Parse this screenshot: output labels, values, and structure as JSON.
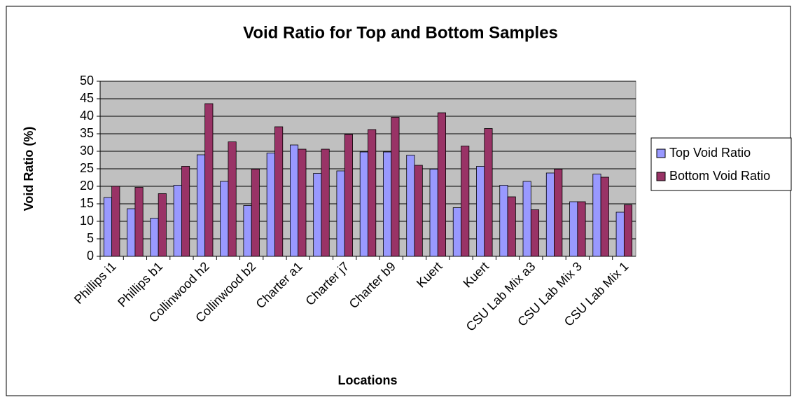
{
  "chart_data": {
    "type": "bar",
    "title": "Void Ratio for Top and Bottom Samples",
    "x_label": "Locations",
    "y_label": "Void Ratio (%)",
    "categories": [
      "Phillips i1",
      null,
      "Phillips b1",
      null,
      "Collinwood h2",
      null,
      "Collinwood b2",
      null,
      "Charter a1",
      null,
      "Charter j7",
      null,
      "Charter b9",
      null,
      "Kuert",
      null,
      "Kuert",
      null,
      "CSU Lab Mix a3",
      null,
      "CSU Lab Mix 3",
      null,
      "CSU Lab Mix 1"
    ],
    "series": [
      {
        "name": "Top Void Ratio",
        "color": "#9999ff",
        "values": [
          16.8,
          13.6,
          10.9,
          20.3,
          29,
          21.4,
          14.5,
          29.5,
          31.8,
          23.7,
          24.4,
          29.8,
          29.8,
          28.9,
          24.9,
          13.9,
          25.7,
          20.3,
          21.4,
          23.8,
          15.6,
          23.5,
          12.6
        ]
      },
      {
        "name": "Bottom Void Ratio",
        "color": "#993366",
        "values": [
          20,
          19.7,
          17.9,
          25.7,
          43.6,
          32.7,
          24.9,
          37,
          30.6,
          30.6,
          34.8,
          36.2,
          39.7,
          26,
          41,
          31.5,
          36.5,
          17,
          13.3,
          24.9,
          15.6,
          22.6,
          14.7
        ]
      }
    ],
    "ylim": [
      0,
      50
    ],
    "yticks": [
      0,
      5,
      10,
      15,
      20,
      25,
      30,
      35,
      40,
      45,
      50
    ],
    "grid": true,
    "plot_background": "#c0c0c0",
    "legend_position": "right"
  }
}
